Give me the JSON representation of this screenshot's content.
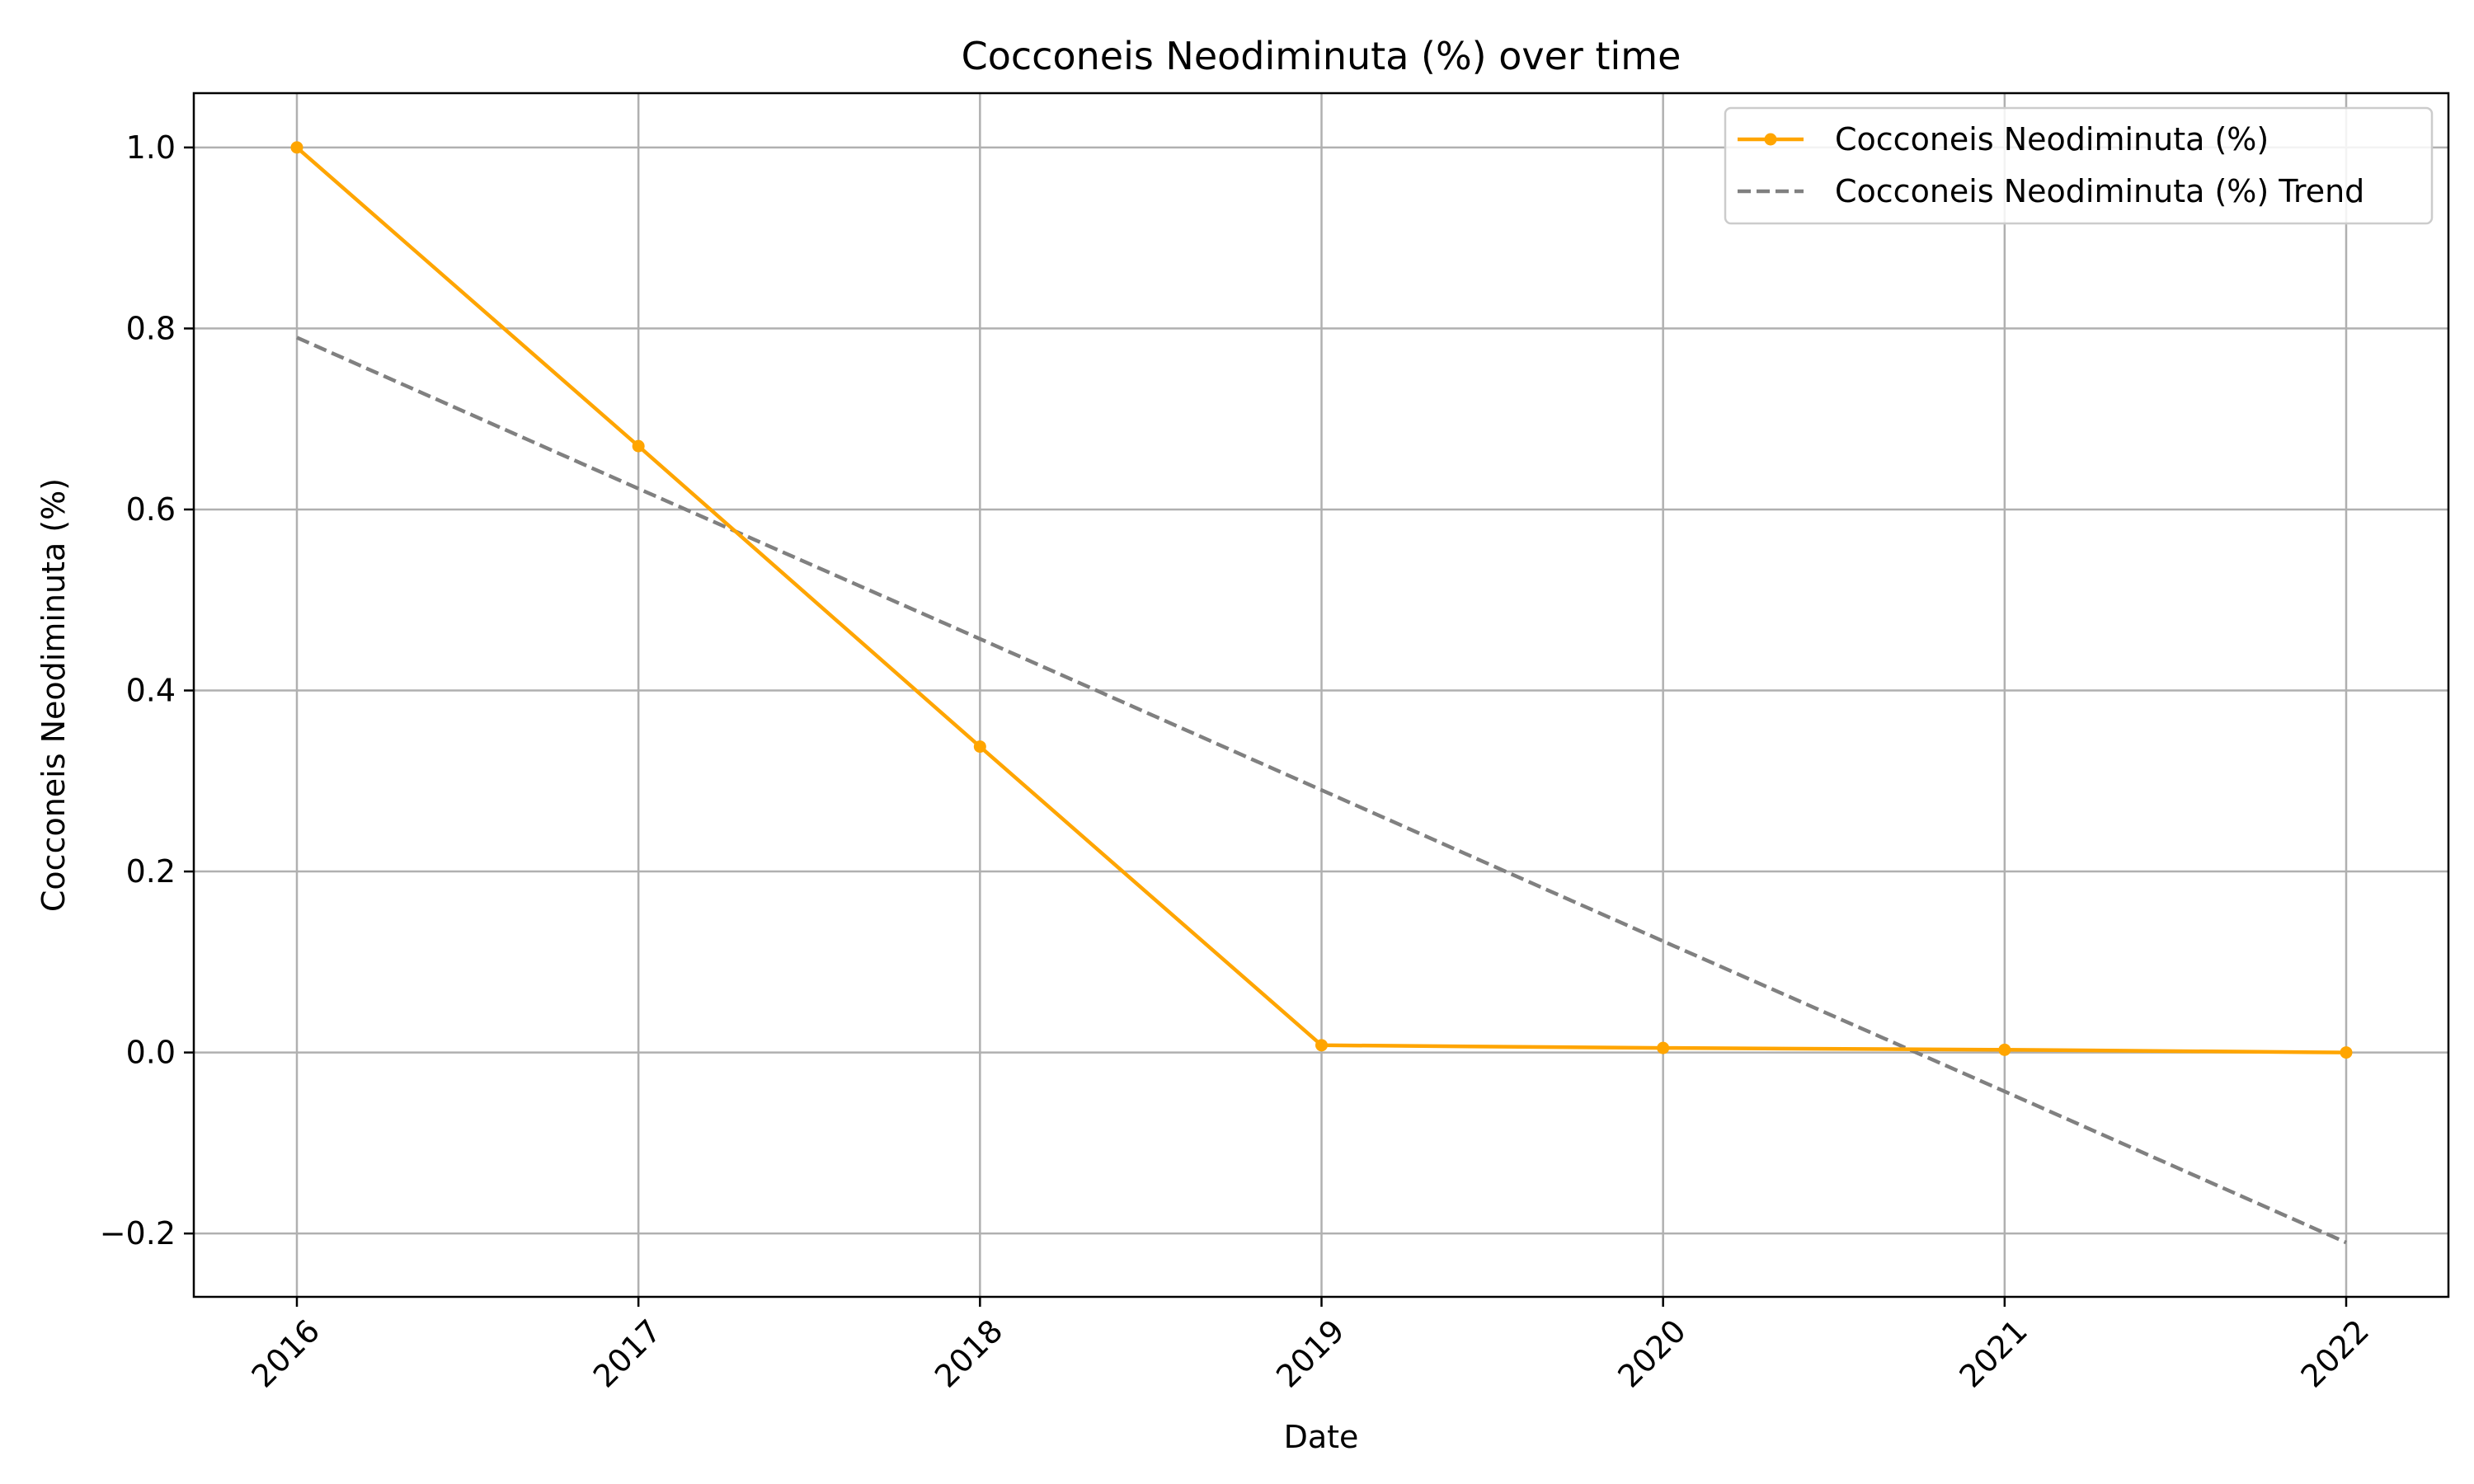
{
  "chart_data": {
    "type": "line",
    "title": "Cocconeis Neodiminuta (%) over time",
    "xlabel": "Date",
    "ylabel": "Cocconeis Neodiminuta (%)",
    "categories": [
      "2016",
      "2017",
      "2018",
      "2019",
      "2020",
      "2021",
      "2022"
    ],
    "ylim": [
      -0.27,
      1.06
    ],
    "yticks": [
      -0.2,
      0.0,
      0.2,
      0.4,
      0.6,
      0.8,
      1.0
    ],
    "ytick_labels": [
      "−0.2",
      "0.0",
      "0.2",
      "0.4",
      "0.6",
      "0.8",
      "1.0"
    ],
    "grid": true,
    "legend_position": "top-right",
    "series": [
      {
        "name": "Cocconeis Neodiminuta (%)",
        "style": "solid",
        "marker": "dot",
        "color": "#FFA500",
        "values": [
          1.0,
          0.67,
          0.338,
          0.008,
          0.005,
          0.003,
          0.0
        ]
      },
      {
        "name": "Cocconeis Neodiminuta (%) Trend",
        "style": "dashed",
        "marker": "none",
        "color": "#808080",
        "values": [
          0.79,
          0.623,
          0.457,
          0.29,
          0.123,
          -0.043,
          -0.21
        ]
      }
    ]
  }
}
